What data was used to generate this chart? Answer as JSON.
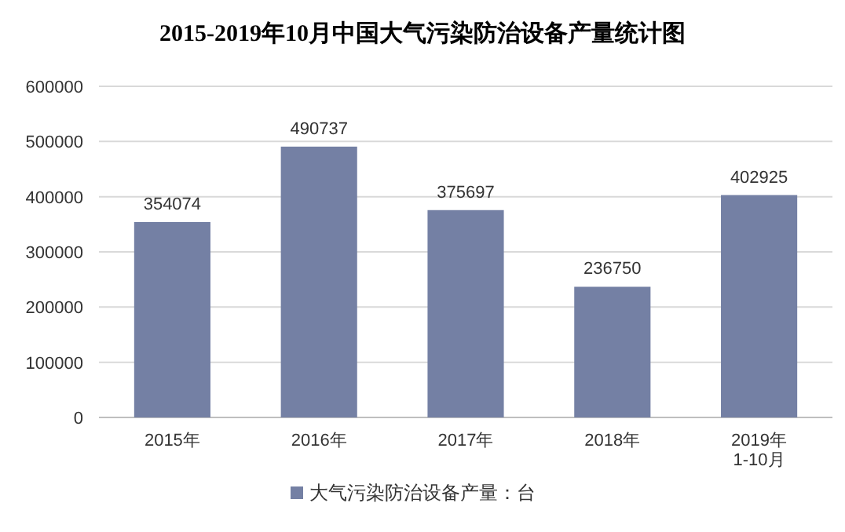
{
  "chart_data": {
    "type": "bar",
    "title": "2015-2019年10月中国大气污染防治设备产量统计图",
    "categories": [
      "2015年",
      "2016年",
      "2017年",
      "2018年",
      "2019年\n1-10月"
    ],
    "series": [
      {
        "name": "大气污染防治设备产量：台",
        "color": "#7480a4",
        "values": [
          354074,
          490737,
          375697,
          236750,
          402925
        ]
      }
    ],
    "ylim": [
      0,
      600000
    ],
    "yticks": [
      0,
      100000,
      200000,
      300000,
      400000,
      500000,
      600000
    ],
    "grid": "y",
    "legend": "bottom",
    "data_labels": true
  }
}
